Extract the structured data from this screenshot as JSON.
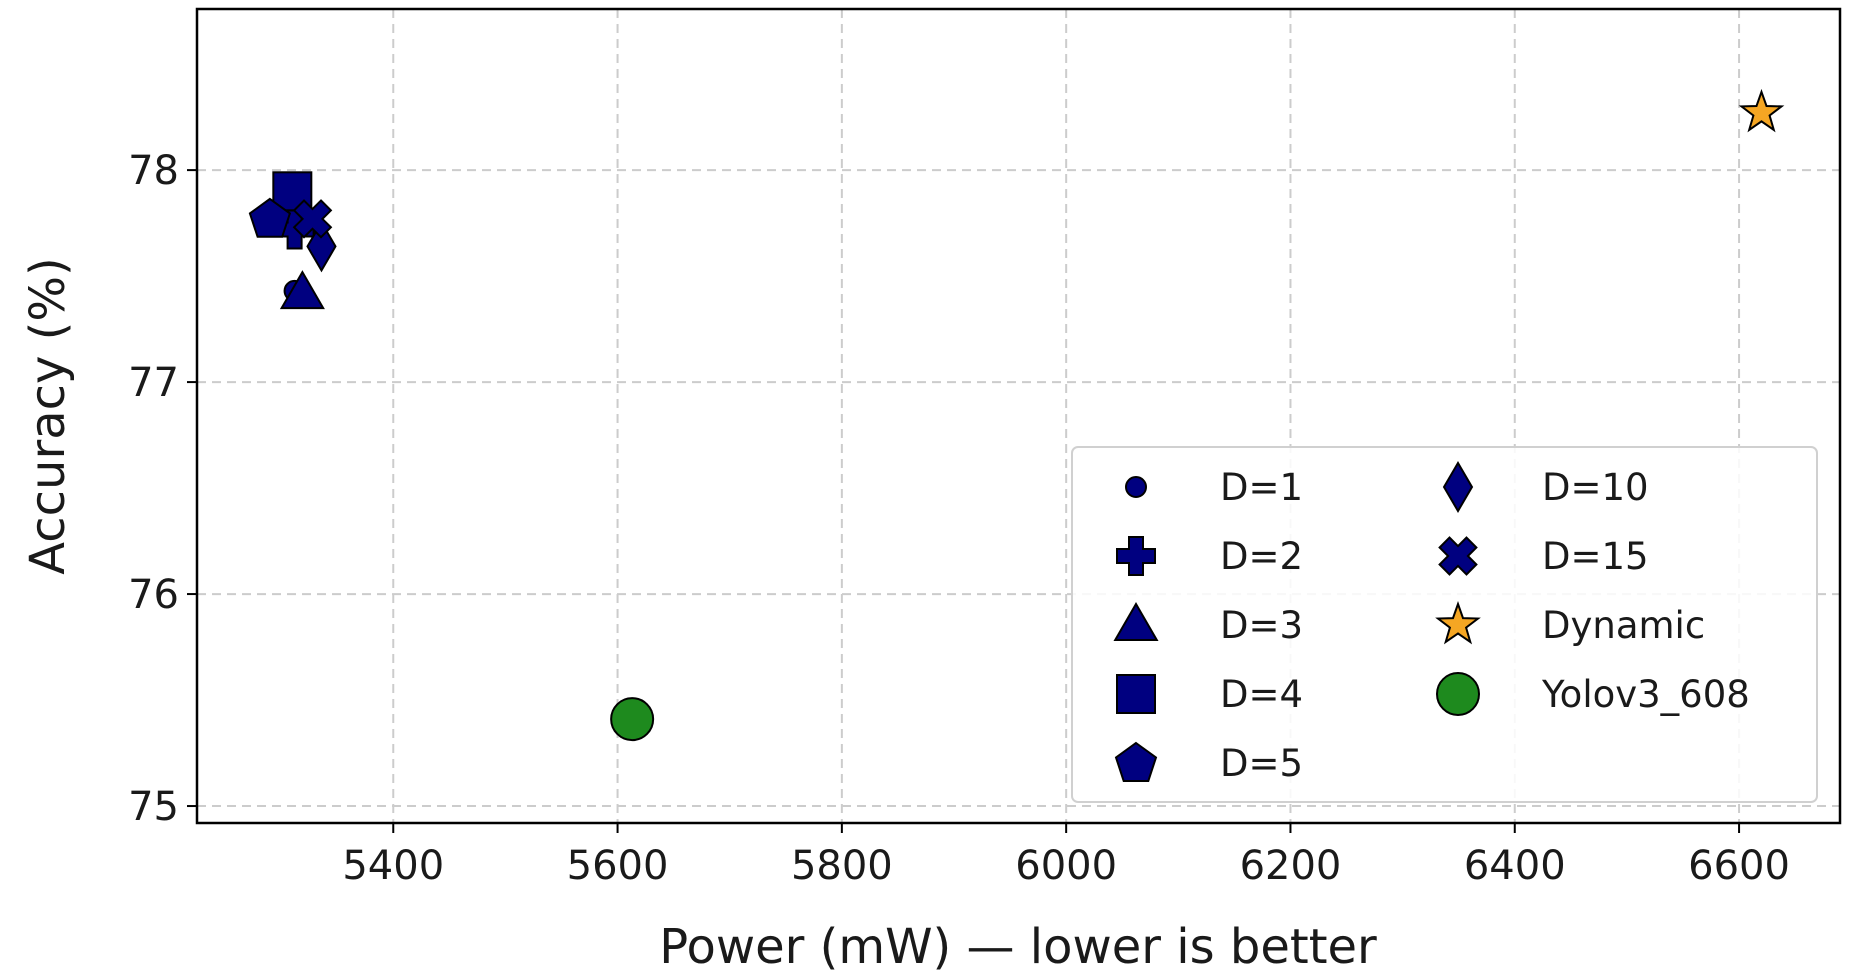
{
  "chart_data": {
    "type": "scatter",
    "xlabel": "Power (mW) — lower is better",
    "ylabel": "Accuracy (%)",
    "xlim": [
      5225,
      6690
    ],
    "ylim": [
      74.92,
      78.76
    ],
    "xticks": [
      5400,
      5600,
      5800,
      6000,
      6200,
      6400,
      6600
    ],
    "yticks": [
      75,
      76,
      77,
      78
    ],
    "grid": true,
    "legend": {
      "placement": "lower-right",
      "columns": 2
    },
    "series": [
      {
        "name": "D=1",
        "marker": "circle",
        "size": "small",
        "color": "#000080",
        "points": [
          {
            "x": 5312,
            "y": 77.43
          }
        ]
      },
      {
        "name": "D=2",
        "marker": "plus",
        "size": "normal",
        "color": "#000080",
        "points": [
          {
            "x": 5312,
            "y": 77.72
          }
        ]
      },
      {
        "name": "D=3",
        "marker": "triangle",
        "size": "normal",
        "color": "#000080",
        "points": [
          {
            "x": 5319,
            "y": 77.42
          }
        ]
      },
      {
        "name": "D=4",
        "marker": "square",
        "size": "normal",
        "color": "#000080",
        "points": [
          {
            "x": 5310,
            "y": 77.9
          }
        ]
      },
      {
        "name": "D=5",
        "marker": "pentagon",
        "size": "normal",
        "color": "#000080",
        "points": [
          {
            "x": 5290,
            "y": 77.77
          }
        ]
      },
      {
        "name": "D=10",
        "marker": "diamond",
        "size": "normal",
        "color": "#000080",
        "points": [
          {
            "x": 5336,
            "y": 77.64
          }
        ]
      },
      {
        "name": "D=15",
        "marker": "x",
        "size": "normal",
        "color": "#000080",
        "points": [
          {
            "x": 5328,
            "y": 77.77
          }
        ]
      },
      {
        "name": "Dynamic",
        "marker": "star",
        "size": "normal",
        "color": "#f5a623",
        "points": [
          {
            "x": 6620,
            "y": 78.27
          }
        ]
      },
      {
        "name": "Yolov3_608",
        "marker": "circle",
        "size": "large",
        "color": "#1e8a1e",
        "points": [
          {
            "x": 5613,
            "y": 75.41
          }
        ]
      }
    ]
  }
}
